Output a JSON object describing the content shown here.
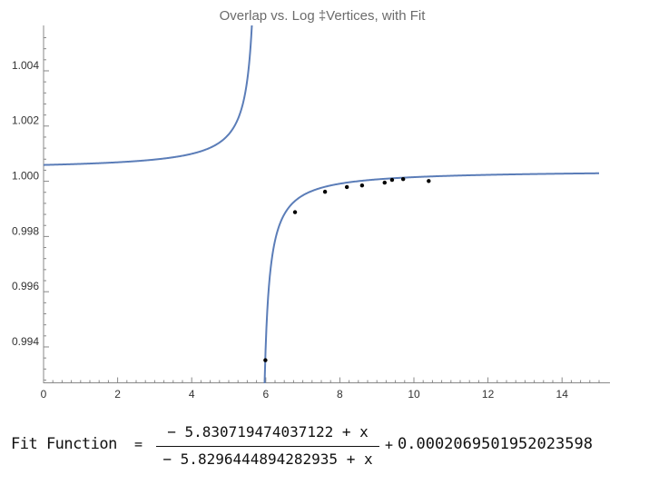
{
  "chart_data": {
    "type": "scatter",
    "title": "Overlap vs. Log ‡Vertices, with Fit",
    "xlim": [
      0,
      15
    ],
    "ylim": [
      0.9925,
      1.005
    ],
    "x_ticks": [
      0,
      2,
      4,
      6,
      8,
      10,
      12,
      14
    ],
    "x_tick_labels": [
      "0",
      "2",
      "4",
      "6",
      "8",
      "10",
      "12",
      "14"
    ],
    "y_ticks": [
      0.994,
      0.996,
      0.998,
      1.0,
      1.002,
      1.004
    ],
    "y_tick_labels": [
      "0.994",
      "0.996",
      "0.998",
      "1.000",
      "1.002",
      "1.004"
    ],
    "grid": false,
    "series": [
      {
        "kind": "points",
        "color": "#000000",
        "points": [
          {
            "x": 5.99,
            "y": 0.99332
          },
          {
            "x": 6.79,
            "y": 0.99868
          },
          {
            "x": 7.6,
            "y": 0.99942
          },
          {
            "x": 8.19,
            "y": 0.99959
          },
          {
            "x": 8.6,
            "y": 0.99965
          },
          {
            "x": 9.21,
            "y": 0.99975
          },
          {
            "x": 9.41,
            "y": 0.99985
          },
          {
            "x": 9.71,
            "y": 0.99988
          },
          {
            "x": 10.4,
            "y": 0.99981
          }
        ]
      },
      {
        "kind": "fit-curve",
        "color": "#5b7db8",
        "a": 5.830719474037122,
        "b": 5.8296444894282935,
        "c": 0.0002069501952023598
      }
    ]
  },
  "formula": {
    "label": "Fit Function",
    "equals": "=",
    "numerator": "− 5.830719474037122 + x",
    "denominator": "− 5.8296444894282935 + x",
    "plus": "+",
    "constant": "0.0002069501952023598"
  }
}
